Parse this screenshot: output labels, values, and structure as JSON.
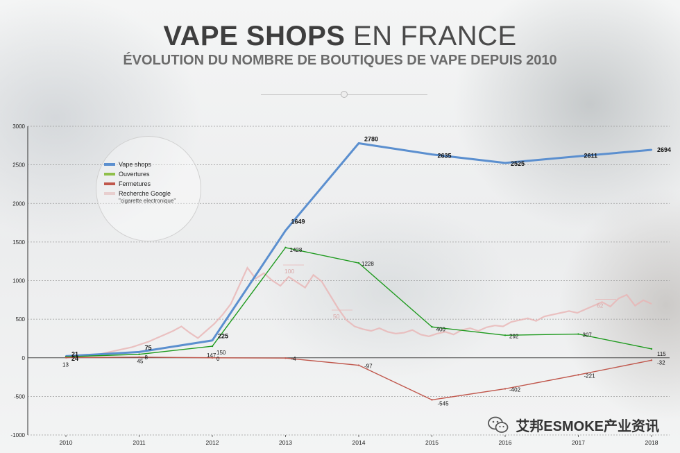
{
  "header": {
    "title_bold": "VAPE SHOPS",
    "title_light": "EN FRANCE",
    "subtitle": "ÉVOLUTION DU NOMBRE DE BOUTIQUES DE VAPE DEPUIS 2010"
  },
  "legend": {
    "items": [
      {
        "label": "Vape shops",
        "color": "#5b8fcf"
      },
      {
        "label": "Ouvertures",
        "color": "#8fbf4a"
      },
      {
        "label": "Fermetures",
        "color": "#c0574c"
      },
      {
        "label": "Recherche Google",
        "color": "#e8cfcf"
      }
    ],
    "google_sub": "\"cigarette electronique\""
  },
  "watermark": {
    "text": "艾邦ESMOKE产业资讯"
  },
  "chart_data": {
    "type": "line",
    "x": [
      "2010",
      "2011",
      "2012",
      "2013",
      "2014",
      "2015",
      "2016",
      "2017",
      "2018"
    ],
    "ylim": [
      -1000,
      3000
    ],
    "yticks": [
      "3000",
      "2500",
      "2000",
      "1500",
      "1000",
      "500",
      "0",
      "-500",
      "-1000"
    ],
    "grid": true,
    "legend_position": "top-left",
    "series": [
      {
        "name": "Vape shops",
        "color": "#5b8fcf",
        "values": [
          21,
          75,
          225,
          1649,
          2780,
          2635,
          2525,
          2611,
          2694
        ],
        "labels": [
          "21",
          "75",
          "225",
          "1649",
          "2780",
          "2635",
          "2525",
          "2611",
          "2694"
        ]
      },
      {
        "name": "Ouvertures",
        "color": "#1e9a1e",
        "values": [
          13,
          45,
          150,
          1428,
          1228,
          400,
          292,
          307,
          115
        ],
        "labels": [
          "13",
          "45",
          "150",
          "1428",
          "1228",
          "400",
          "292",
          "307",
          "115"
        ]
      },
      {
        "name": "Fermetures",
        "color": "#c0574c",
        "values": [
          3,
          8,
          0,
          -4,
          -97,
          -545,
          -402,
          -221,
          -32
        ],
        "labels": [
          "",
          "8",
          "0",
          "-4",
          "-97",
          "-545",
          "-402",
          "-221",
          "-32"
        ]
      }
    ],
    "extra_labels": [
      "24",
      "147"
    ],
    "google_search": {
      "name": "Recherche Google",
      "color": "#e8b4b4",
      "scale_labels": [
        "100",
        "50",
        "62"
      ],
      "values": [
        0,
        1,
        2,
        3,
        4,
        6,
        8,
        10,
        12,
        15,
        18,
        22,
        26,
        30,
        35,
        28,
        22,
        30,
        38,
        48,
        60,
        80,
        100,
        88,
        94,
        86,
        80,
        90,
        84,
        78,
        92,
        85,
        70,
        55,
        42,
        35,
        32,
        30,
        33,
        29,
        27,
        28,
        31,
        26,
        24,
        27,
        29,
        26,
        31,
        33,
        30,
        34,
        36,
        35,
        40,
        42,
        44,
        41,
        46,
        48,
        50,
        52,
        50,
        54,
        58,
        62,
        57,
        66,
        70,
        58,
        64,
        60
      ]
    }
  }
}
